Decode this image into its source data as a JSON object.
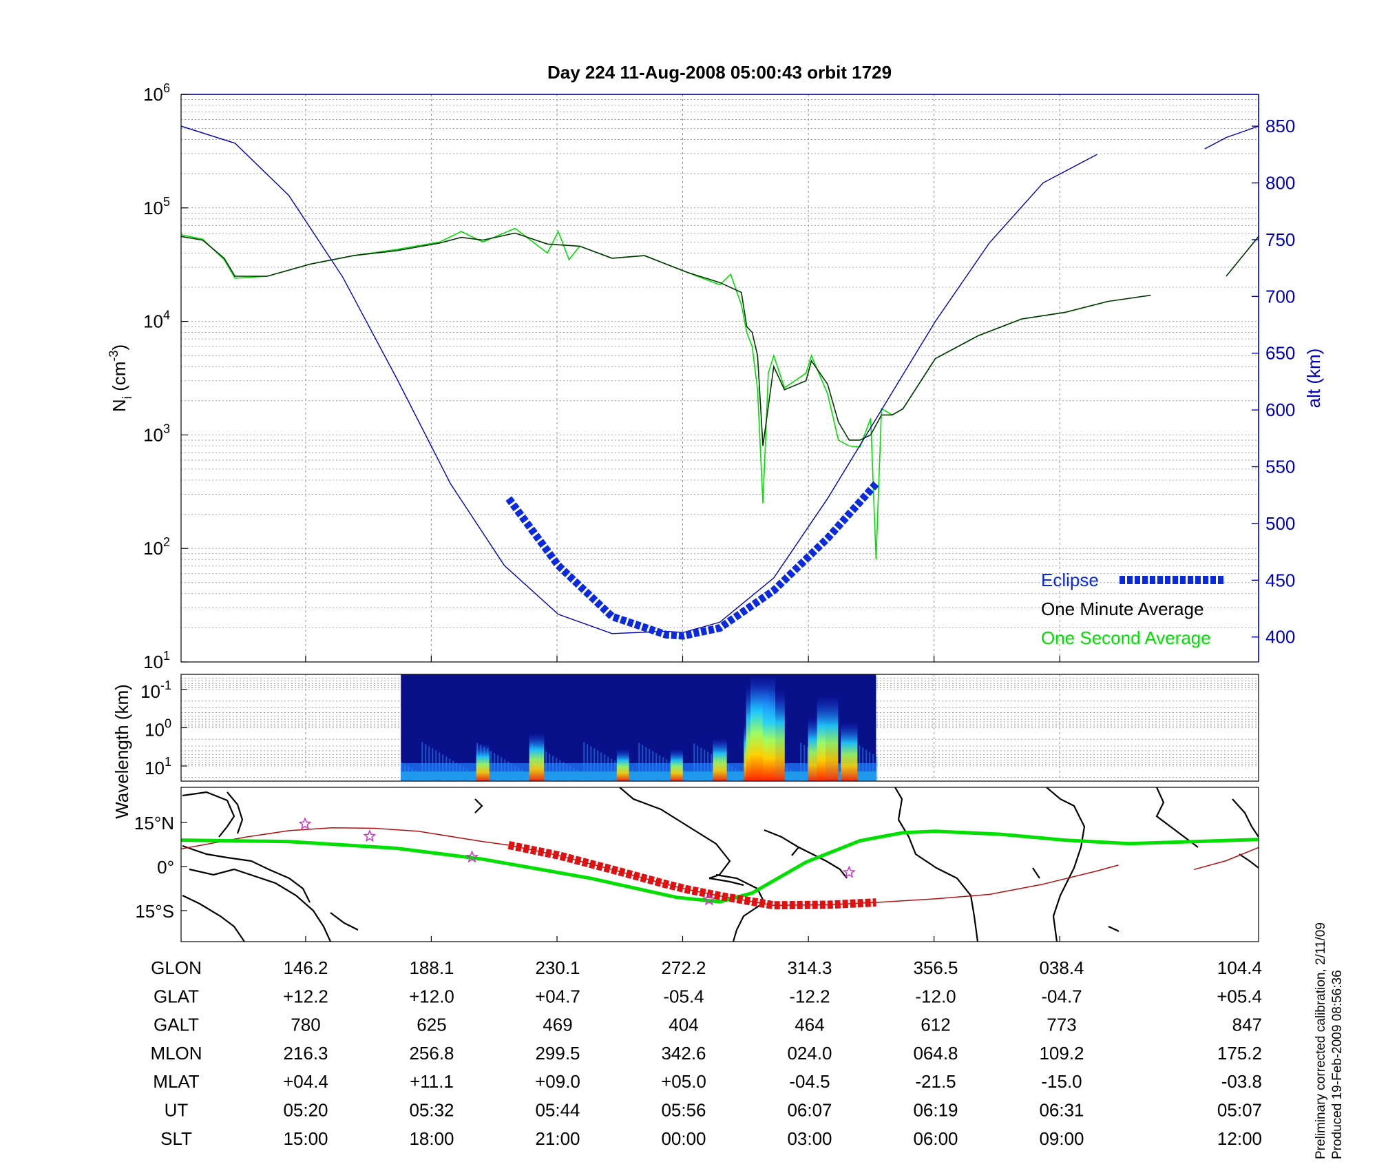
{
  "title": "Day 224  11-Aug-2008 05:00:43   orbit 1729",
  "colors": {
    "altitude": "#0000b4",
    "eclipse": "#0a2ae0",
    "one_minute": "#003300",
    "one_second": "#00e000",
    "track_green": "#00e000",
    "track_red_thick": "#e01010",
    "track_red_thin": "#b01010",
    "stars": "#cc33cc",
    "grid": "#8c8c8c"
  },
  "chart_data": [
    {
      "type": "line",
      "name": "density-altitude",
      "ylabel": "N",
      "ylabel_sub": "i",
      "ylabel_unit_open": " (cm",
      "ylabel_unit_sup": "-3",
      "ylabel_unit_close": ")",
      "y_scale": "log",
      "ylim": [
        10,
        1000000
      ],
      "y_tick_base": "10",
      "y_tick_exponents": [
        "1",
        "2",
        "3",
        "4",
        "5",
        "6"
      ],
      "y2label": "alt (km)",
      "y2lim": [
        378,
        878
      ],
      "y2_ticks": [
        "400",
        "450",
        "500",
        "550",
        "600",
        "650",
        "700",
        "750",
        "800",
        "850"
      ],
      "x_scale": "orbit fraction 0–1 (no tick labels)",
      "legend": {
        "position": "bottom-right",
        "eclipse": "Eclipse",
        "one_minute": "One Minute Average",
        "one_second": "One Second Average"
      },
      "grid": true,
      "altitude_km": {
        "x": [
          0.0,
          0.05,
          0.1,
          0.15,
          0.2,
          0.25,
          0.3,
          0.35,
          0.4,
          0.45,
          0.466,
          0.5,
          0.55,
          0.6,
          0.65,
          0.7,
          0.75,
          0.8,
          0.85,
          0.9,
          0.95,
          0.97,
          1.0
        ],
        "y": [
          850,
          835,
          789,
          717,
          628,
          535,
          463,
          420,
          403,
          405,
          404,
          413,
          452,
          522,
          600,
          678,
          747,
          800,
          825,
          null,
          830,
          840,
          850
        ]
      },
      "eclipse_altitude_km": {
        "x": [
          0.304,
          0.35,
          0.4,
          0.45,
          0.466,
          0.5,
          0.55,
          0.6,
          0.645
        ],
        "y": [
          522,
          463,
          418,
          402,
          401,
          408,
          441,
          487,
          535
        ]
      },
      "one_minute_density": {
        "x": [
          0.0,
          0.02,
          0.04,
          0.05,
          0.08,
          0.12,
          0.16,
          0.2,
          0.24,
          0.26,
          0.28,
          0.31,
          0.34,
          0.37,
          0.4,
          0.43,
          0.47,
          0.5,
          0.52,
          0.525,
          0.53,
          0.535,
          0.54,
          0.55,
          0.56,
          0.58,
          0.585,
          0.6,
          0.61,
          0.62,
          0.63,
          0.64,
          0.65,
          0.66,
          0.67,
          0.7,
          0.74,
          0.78,
          0.82,
          0.86,
          0.9,
          0.94,
          0.97,
          1.0
        ],
        "y": [
          56000,
          52000,
          36000,
          25000,
          25000,
          32000,
          38000,
          42000,
          49000,
          55000,
          52000,
          60000,
          48000,
          46000,
          36000,
          38000,
          27000,
          22000,
          18000,
          9000,
          8000,
          5000,
          800,
          4000,
          2500,
          3000,
          4500,
          2800,
          1300,
          900,
          900,
          1000,
          1500,
          1500,
          1700,
          4700,
          7500,
          10500,
          12000,
          15000,
          17000,
          null,
          25000,
          56000
        ]
      },
      "one_second_density": {
        "x": [
          0.0,
          0.02,
          0.04,
          0.05,
          0.08,
          0.12,
          0.16,
          0.2,
          0.24,
          0.26,
          0.28,
          0.31,
          0.34,
          0.35,
          0.36,
          0.37,
          0.4,
          0.43,
          0.47,
          0.5,
          0.51,
          0.52,
          0.525,
          0.53,
          0.535,
          0.54,
          0.545,
          0.55,
          0.56,
          0.58,
          0.585,
          0.6,
          0.61,
          0.62,
          0.63,
          0.64,
          0.645,
          0.65,
          0.66,
          0.67,
          0.7,
          0.74,
          0.78,
          0.82,
          0.86
        ],
        "y": [
          58000,
          53000,
          35000,
          24000,
          25000,
          32000,
          38000,
          43000,
          50000,
          62000,
          50000,
          66000,
          40000,
          62000,
          35000,
          46000,
          36000,
          38000,
          27000,
          21000,
          26000,
          14000,
          8000,
          6000,
          2500,
          250,
          3500,
          5000,
          2600,
          3500,
          5000,
          2300,
          900,
          800,
          780,
          1400,
          80,
          1700,
          1500,
          1700,
          4700,
          7500,
          10500,
          12000,
          15000
        ]
      }
    },
    {
      "type": "heatmap",
      "name": "wavelength-spectrogram",
      "ylabel": "Wavelength (km)",
      "y_scale": "log",
      "y_tick_base": "10",
      "y_tick_exponents": [
        "-1",
        "0",
        "1"
      ],
      "x_coverage": [
        0.204,
        0.645
      ],
      "intensity_scale": "jet (blue low → red high)",
      "bursts": {
        "x": [
          0.28,
          0.33,
          0.41,
          0.46,
          0.5,
          0.53,
          0.535,
          0.54,
          0.55,
          0.59,
          0.6,
          0.62
        ],
        "level": [
          0.35,
          0.45,
          0.3,
          0.3,
          0.4,
          0.55,
          0.9,
          1.0,
          0.85,
          0.6,
          0.8,
          0.55
        ]
      }
    },
    {
      "type": "map",
      "name": "ground-track-map",
      "lat_ticks": [
        "15°N",
        "0°",
        "15°S"
      ],
      "satellite_track_lat": {
        "x": [
          0.0,
          0.06,
          0.1,
          0.14,
          0.18,
          0.22,
          0.28,
          0.304,
          0.35,
          0.4,
          0.45,
          0.47,
          0.5,
          0.55,
          0.6,
          0.645,
          0.7,
          0.75,
          0.8,
          0.85,
          0.87
        ],
        "y": [
          6,
          10,
          12.2,
          13.2,
          13.0,
          12.0,
          8.5,
          7.3,
          3.8,
          -1.0,
          -6.0,
          -7.8,
          -10.0,
          -13.2,
          -13.0,
          -12.2,
          -11.0,
          -9.5,
          -6.0,
          -1.5,
          0.5
        ]
      },
      "satellite_track_tail": {
        "x": [
          0.94,
          0.97,
          1.0
        ],
        "y": [
          -1.0,
          2.0,
          6.5
        ]
      },
      "eclipse_track_lat": {
        "x": [
          0.304,
          0.35,
          0.4,
          0.45,
          0.47,
          0.5,
          0.55,
          0.6,
          0.645
        ],
        "y": [
          7.3,
          3.8,
          -1.0,
          -6.0,
          -7.8,
          -10.0,
          -13.2,
          -13.0,
          -12.2
        ]
      },
      "magnetic_equator_lat": {
        "x": [
          0.0,
          0.1,
          0.2,
          0.28,
          0.38,
          0.46,
          0.5,
          0.53,
          0.58,
          0.63,
          0.67,
          0.7,
          0.76,
          0.82,
          0.88,
          0.94,
          1.0
        ],
        "y": [
          9,
          8.5,
          6.2,
          2.5,
          -4.0,
          -10.5,
          -12.0,
          -9.0,
          1.5,
          8.8,
          11.5,
          12.0,
          11.0,
          9.0,
          7.8,
          8.5,
          9.2
        ]
      },
      "stars_lat": {
        "x": [
          0.115,
          0.175,
          0.27,
          0.49,
          0.62
        ],
        "y": [
          14.5,
          10.3,
          3.2,
          -11.3,
          -2.0
        ]
      }
    }
  ],
  "table": {
    "rows": [
      {
        "label": "GLON",
        "values": [
          "146.2",
          "188.1",
          "230.1",
          "272.2",
          "314.3",
          "356.5",
          "038.4",
          "104.4"
        ]
      },
      {
        "label": "GLAT",
        "values": [
          "+12.2",
          "+12.0",
          "+04.7",
          "-05.4",
          "-12.2",
          "-12.0",
          "-04.7",
          "+05.4"
        ]
      },
      {
        "label": "GALT",
        "values": [
          "780",
          "625",
          "469",
          "404",
          "464",
          "612",
          "773",
          "847"
        ]
      },
      {
        "label": "MLON",
        "values": [
          "216.3",
          "256.8",
          "299.5",
          "342.6",
          "024.0",
          "064.8",
          "109.2",
          "175.2"
        ]
      },
      {
        "label": "MLAT",
        "values": [
          "+04.4",
          "+11.1",
          "+09.0",
          "+05.0",
          "-04.5",
          "-21.5",
          "-15.0",
          "-03.8"
        ]
      },
      {
        "label": "UT",
        "values": [
          "05:20",
          "05:32",
          "05:44",
          "05:56",
          "06:07",
          "06:19",
          "06:31",
          "05:07"
        ]
      },
      {
        "label": "SLT",
        "values": [
          "15:00",
          "18:00",
          "21:00",
          "00:00",
          "03:00",
          "06:00",
          "09:00",
          "12:00"
        ]
      }
    ]
  },
  "footer": {
    "line1": "Preliminary corrected calibration, 2/11/09",
    "line2": "Produced 19-Feb-2009 08:56:36"
  }
}
